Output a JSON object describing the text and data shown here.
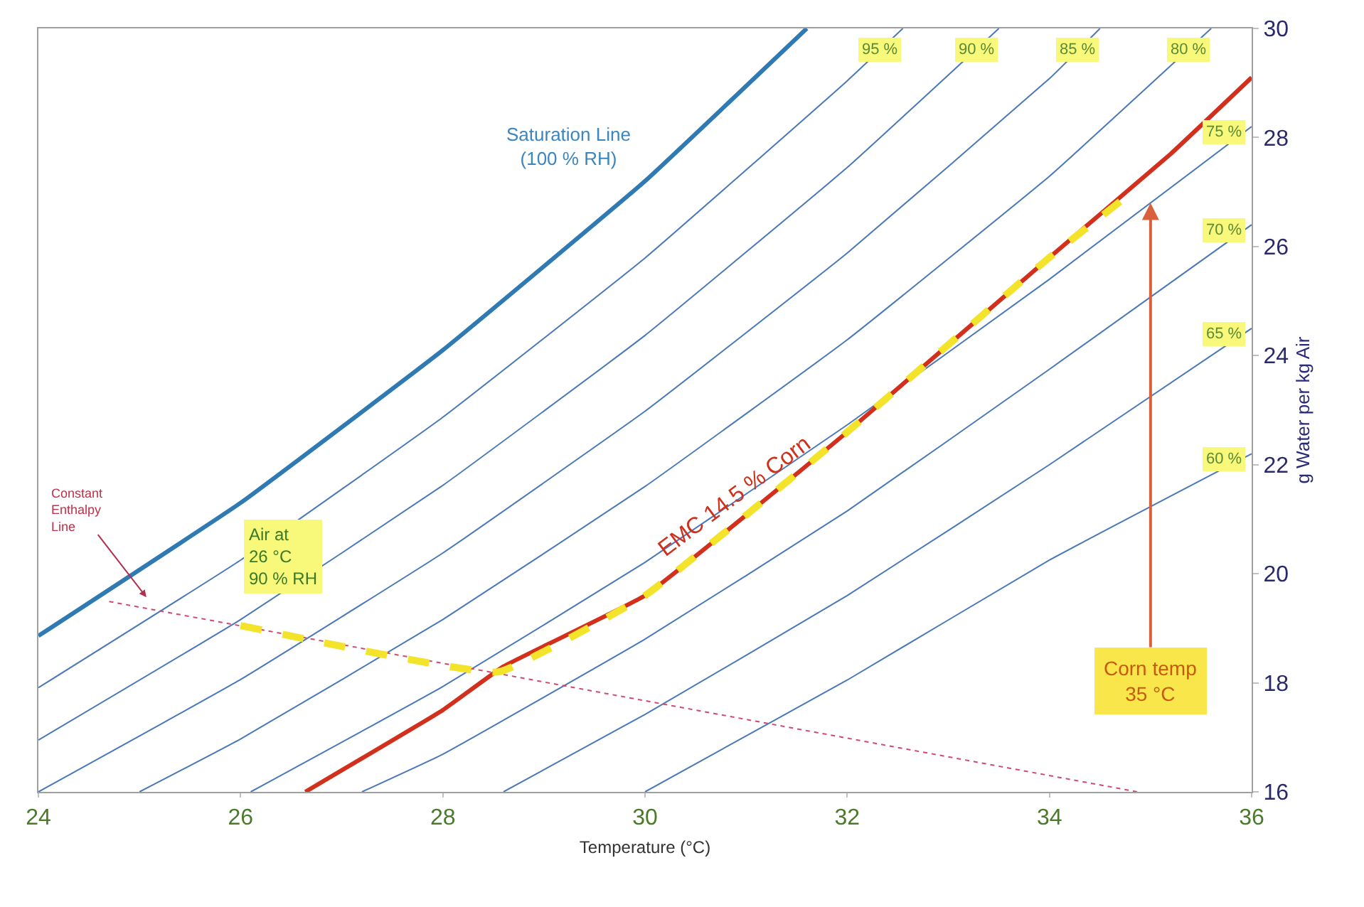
{
  "chart_data": {
    "type": "line",
    "xlabel": "Temperature (°C)",
    "ylabel": "g Water per kg Air",
    "xlim": [
      24,
      36
    ],
    "xticks": [
      24,
      26,
      28,
      30,
      32,
      34,
      36
    ],
    "ylim": [
      16,
      30
    ],
    "yticks": [
      16,
      18,
      20,
      22,
      24,
      26,
      28,
      30
    ],
    "legend": false,
    "series": [
      {
        "color": "#2f7ab3",
        "line_style": "solid",
        "x": [
          24,
          26,
          28,
          30,
          31.6
        ],
        "values": [
          18.86,
          21.3,
          24.1,
          27.2,
          30
        ]
      },
      {
        "name": "95 %",
        "color": "#4a78b8",
        "line_style": "solid",
        "x": [
          24,
          26,
          28,
          30,
          32,
          32.55
        ],
        "values": [
          17.91,
          20.25,
          22.87,
          25.79,
          29.04,
          30
        ]
      },
      {
        "name": "90 %",
        "color": "#4a78b8",
        "line_style": "solid",
        "x": [
          24,
          26,
          28,
          30,
          32,
          33.5
        ],
        "values": [
          16.95,
          19.16,
          21.62,
          24.37,
          27.45,
          30
        ]
      },
      {
        "name": "85 %",
        "color": "#4a78b8",
        "line_style": "solid",
        "x": [
          24,
          26,
          28,
          30,
          32,
          34,
          34.5
        ],
        "values": [
          16,
          18.06,
          20.38,
          22.98,
          25.88,
          29.08,
          30
        ]
      },
      {
        "name": "80 %",
        "color": "#4a78b8",
        "line_style": "solid",
        "x": [
          25,
          26,
          28,
          30,
          32,
          34,
          35.6
        ],
        "values": [
          16,
          16.97,
          19.16,
          21.6,
          24.29,
          27.29,
          30
        ]
      },
      {
        "name": "75 %",
        "color": "#4a78b8",
        "line_style": "solid",
        "x": [
          26.1,
          28,
          30,
          32,
          34,
          36
        ],
        "values": [
          16,
          17.93,
          20.21,
          22.73,
          25.4,
          28.2
        ]
      },
      {
        "name": "70 %",
        "color": "#4a78b8",
        "line_style": "solid",
        "x": [
          27.2,
          28,
          30,
          32,
          34,
          36
        ],
        "values": [
          16,
          16.69,
          18.8,
          21.15,
          23.75,
          26.4
        ]
      },
      {
        "name": "65 %",
        "color": "#4a78b8",
        "line_style": "solid",
        "x": [
          28.6,
          30,
          32,
          34,
          36
        ],
        "values": [
          16,
          17.42,
          19.6,
          22.0,
          24.5
        ]
      },
      {
        "name": "60 %",
        "color": "#4a78b8",
        "line_style": "solid",
        "x": [
          30.0,
          32,
          34,
          36
        ],
        "values": [
          16,
          18.05,
          20.25,
          22.2
        ]
      },
      {
        "color": "#d04a70",
        "line_style": "dotted",
        "x": [
          24.7,
          34.87
        ],
        "values": [
          19.49,
          16
        ]
      },
      {
        "color": "#d2301c",
        "line_style": "solid",
        "x": [
          26.64,
          28,
          28.6,
          30,
          32,
          34,
          35.2,
          36
        ],
        "values": [
          16,
          17.5,
          18.3,
          19.6,
          22.6,
          25.8,
          27.7,
          29.1
        ]
      },
      {
        "color": "#f3e32a",
        "line_style": "dashed",
        "x": [
          26,
          28.55,
          30,
          32,
          34,
          34.75
        ],
        "values": [
          19.05,
          18.2,
          19.6,
          22.6,
          25.8,
          26.9
        ]
      }
    ],
    "annotations": [
      "Saturation Line\n(100 % RH)",
      "Constant\nEnthalpy\nLine",
      {
        "text": "Air at\n26 °C\n90 % RH",
        "x": 26,
        "y": 19.05
      },
      {
        "text": "EMC 14.5 % Corn",
        "x": 31,
        "y": 21.0
      },
      {
        "text": "Corn temp\n35 °C",
        "x": 35,
        "y": 26.8
      }
    ]
  }
}
